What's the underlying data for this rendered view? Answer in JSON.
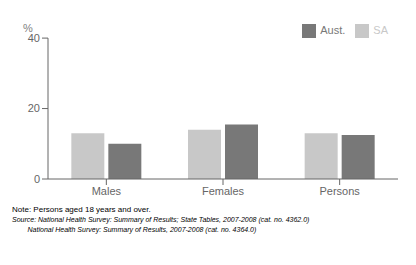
{
  "chart_data": {
    "type": "bar",
    "categories": [
      "Males",
      "Females",
      "Persons"
    ],
    "series": [
      {
        "name": "SA",
        "color": "#c8c8c8",
        "values": [
          13.0,
          14.0,
          13.0
        ]
      },
      {
        "name": "Aust.",
        "color": "#787878",
        "values": [
          10.0,
          15.5,
          12.5
        ]
      }
    ],
    "ylabel": "%",
    "ylim": [
      0,
      40
    ],
    "yticks": [
      0,
      20,
      40
    ],
    "grid": false,
    "legend": "upper right",
    "annotations": [
      "Note: Persons aged 18 years and over.",
      "Source: National Health Survey: Summary of Results; State Tables, 2007-2008 (cat. no. 4362.0)",
      "        National Health Survey: Summary of Results, 2007-2008 (cat. no. 4364.0)"
    ]
  }
}
